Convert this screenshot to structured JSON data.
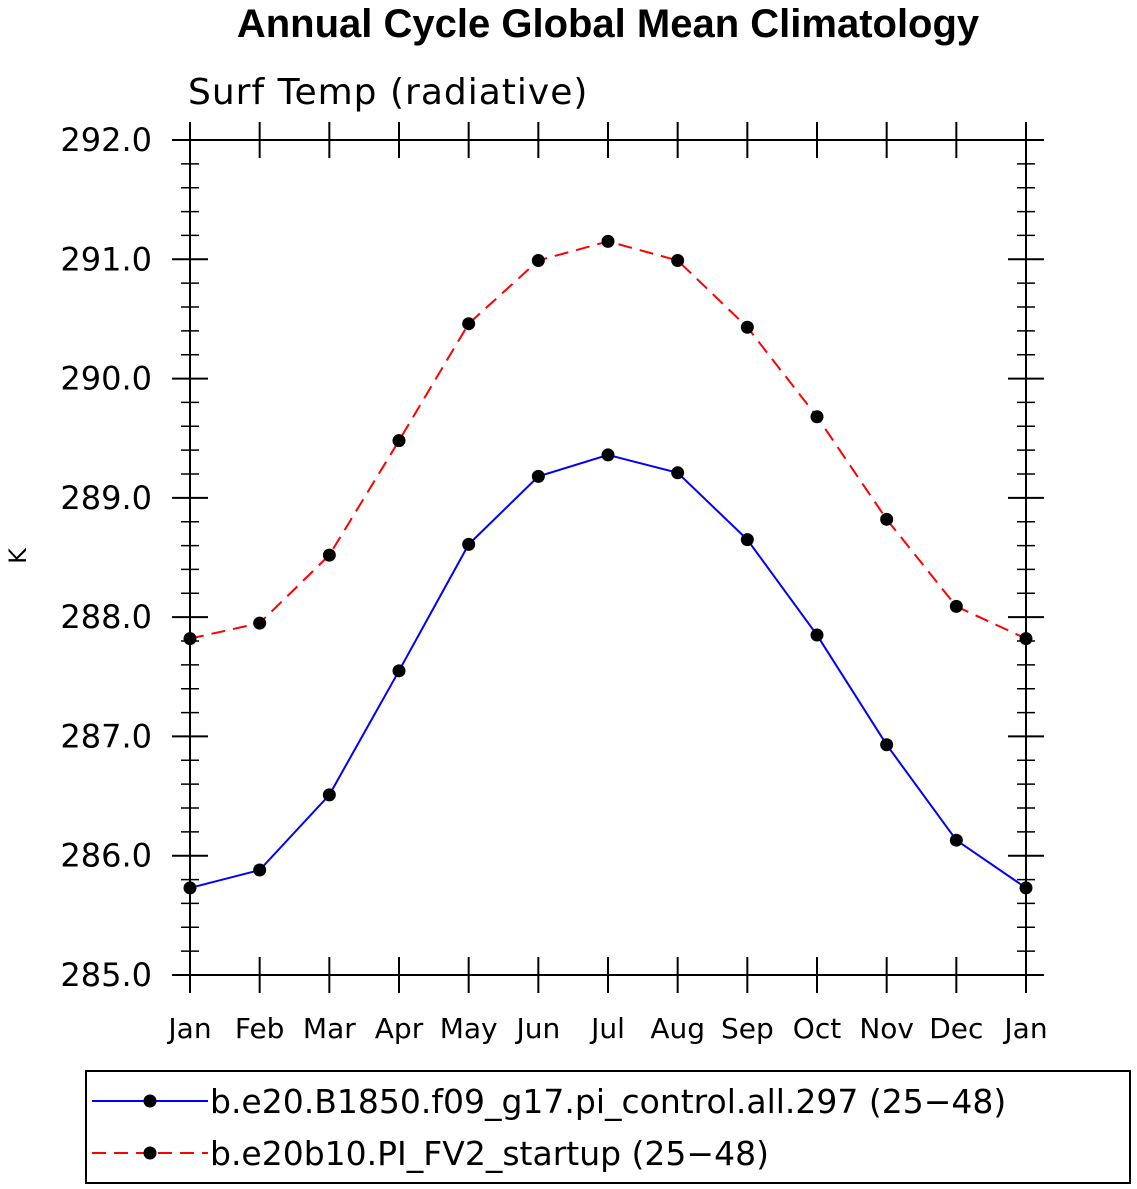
{
  "chart_data": {
    "type": "line",
    "title": "Annual Cycle Global Mean Climatology",
    "subtitle": "Surf Temp (radiative)",
    "xlabel": "",
    "ylabel": "K",
    "categories": [
      "Jan",
      "Feb",
      "Mar",
      "Apr",
      "May",
      "Jun",
      "Jul",
      "Aug",
      "Sep",
      "Oct",
      "Nov",
      "Dec",
      "Jan"
    ],
    "ylim": [
      285.0,
      292.0
    ],
    "yticks": [
      285.0,
      286.0,
      287.0,
      288.0,
      289.0,
      290.0,
      291.0,
      292.0
    ],
    "ytick_labels": [
      "285.0",
      "286.0",
      "287.0",
      "288.0",
      "289.0",
      "290.0",
      "291.0",
      "292.0"
    ],
    "grid": false,
    "legend_position": "bottom",
    "series": [
      {
        "name": "b.e20.B1850.f09_g17.pi_control.all.297 (25−48)",
        "color": "#0000ff",
        "dash": "solid",
        "values": [
          285.73,
          285.88,
          286.51,
          287.55,
          288.61,
          289.18,
          289.36,
          289.21,
          288.65,
          287.85,
          286.93,
          286.13,
          285.73
        ]
      },
      {
        "name": "b.e20b10.PI_FV2_startup (25−48)",
        "color": "#ff0000",
        "dash": "dashed",
        "values": [
          287.82,
          287.95,
          288.52,
          289.48,
          290.46,
          290.99,
          291.15,
          290.99,
          290.43,
          289.68,
          288.82,
          288.09,
          287.82
        ]
      }
    ]
  }
}
